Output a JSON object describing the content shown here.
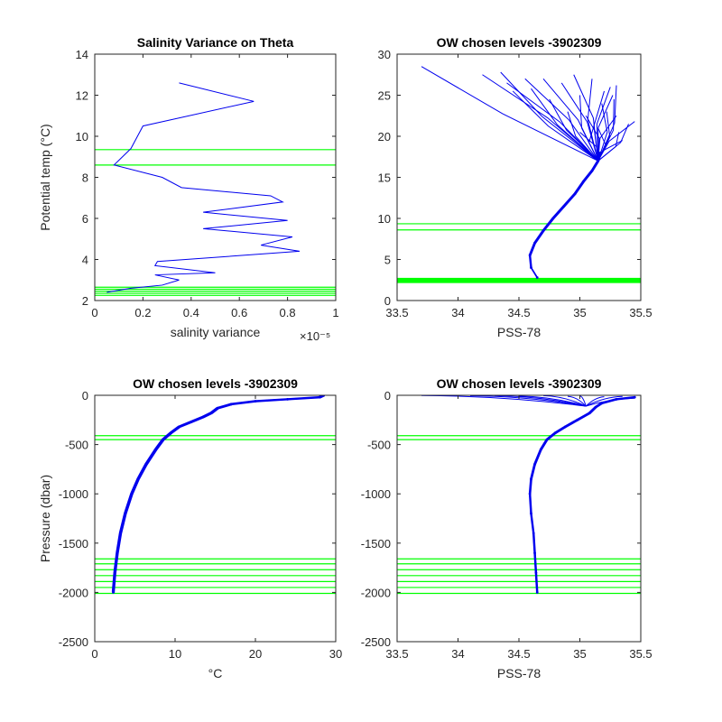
{
  "colors": {
    "profile": "#0000ee",
    "levels": "#00ff00",
    "axis": "#262626",
    "background": "#ffffff"
  },
  "chart_data": [
    {
      "id": "p1",
      "type": "line",
      "title": "Salinity Variance on Theta",
      "xlabel": "salinity variance",
      "ylabel": "Potential temp (°C)",
      "xlim": [
        0,
        1e-05
      ],
      "ylim": [
        2,
        14
      ],
      "xticks": [
        0,
        0.2,
        0.4,
        0.6,
        0.8,
        1
      ],
      "xticklabels": [
        "0",
        "0.2",
        "0.4",
        "0.6",
        "0.8",
        "1"
      ],
      "xscale_note": "×10⁻⁵",
      "yticks": [
        2,
        4,
        6,
        8,
        10,
        12,
        14
      ],
      "yticklabels": [
        "2",
        "4",
        "6",
        "8",
        "10",
        "12",
        "14"
      ],
      "series": [
        {
          "values": [
            [
              3.5e-06,
              12.6
            ],
            [
              6.6e-06,
              11.7
            ],
            [
              2e-06,
              10.5
            ],
            [
              1.5e-06,
              9.4
            ],
            [
              8e-07,
              8.6
            ],
            [
              2.8e-06,
              8.0
            ],
            [
              3.6e-06,
              7.5
            ],
            [
              7.3e-06,
              7.1
            ],
            [
              7.8e-06,
              6.8
            ],
            [
              4.5e-06,
              6.3
            ],
            [
              8e-06,
              5.9
            ],
            [
              4.5e-06,
              5.5
            ],
            [
              8.2e-06,
              5.1
            ],
            [
              6.9e-06,
              4.7
            ],
            [
              8.5e-06,
              4.4
            ],
            [
              2.6e-06,
              3.9
            ],
            [
              2.5e-06,
              3.7
            ],
            [
              5e-06,
              3.35
            ],
            [
              2.5e-06,
              3.25
            ],
            [
              3.5e-06,
              3.0
            ],
            [
              2.8e-06,
              2.75
            ],
            [
              1.5e-06,
              2.6
            ],
            [
              5e-07,
              2.4
            ]
          ]
        }
      ],
      "hlines": [
        9.35,
        8.6,
        2.65,
        2.55,
        2.45,
        2.35,
        2.25
      ]
    },
    {
      "id": "p2",
      "type": "line",
      "title": "OW chosen levels -3902309",
      "xlabel": "PSS-78",
      "ylabel": "",
      "xlim": [
        33.5,
        35.5
      ],
      "ylim": [
        0,
        30
      ],
      "xticks": [
        33.5,
        34,
        34.5,
        35,
        35.5
      ],
      "xticklabels": [
        "33.5",
        "34",
        "34.5",
        "35",
        "35.5"
      ],
      "yticks": [
        0,
        5,
        10,
        15,
        20,
        25,
        30
      ],
      "yticklabels": [
        "0",
        "5",
        "10",
        "15",
        "20",
        "25",
        "30"
      ],
      "series": [
        {
          "values": [
            [
              34.65,
              2.8
            ],
            [
              34.6,
              4.0
            ],
            [
              34.59,
              5.5
            ],
            [
              34.63,
              7.0
            ],
            [
              34.7,
              8.5
            ],
            [
              34.78,
              10.0
            ],
            [
              34.87,
              11.5
            ],
            [
              34.96,
              13.0
            ],
            [
              35.03,
              14.5
            ],
            [
              35.1,
              15.8
            ],
            [
              35.15,
              17.0
            ],
            [
              35.17,
              18.0
            ]
          ]
        }
      ],
      "fan_origin": [
        35.15,
        17.0
      ],
      "fan_ends": [
        [
          33.7,
          28.5
        ],
        [
          34.2,
          27.5
        ],
        [
          34.35,
          27.8
        ],
        [
          34.4,
          26.5
        ],
        [
          34.45,
          25.5
        ],
        [
          34.55,
          27.0
        ],
        [
          34.6,
          25.8
        ],
        [
          34.7,
          27.0
        ],
        [
          34.75,
          24.5
        ],
        [
          34.85,
          26.5
        ],
        [
          34.9,
          23.0
        ],
        [
          34.95,
          27.5
        ],
        [
          35.0,
          25.0
        ],
        [
          35.05,
          22.5
        ],
        [
          35.1,
          27.0
        ],
        [
          35.15,
          21.0
        ],
        [
          35.2,
          25.5
        ],
        [
          35.22,
          23.0
        ],
        [
          35.25,
          26.0
        ],
        [
          35.28,
          24.5
        ],
        [
          35.3,
          22.5
        ],
        [
          35.32,
          20.5
        ],
        [
          35.35,
          19.5
        ],
        [
          35.4,
          21.5
        ],
        [
          35.45,
          21.8
        ],
        [
          35.3,
          26.2
        ],
        [
          35.27,
          25.0
        ],
        [
          35.18,
          24.0
        ],
        [
          35.12,
          21.5
        ],
        [
          35.0,
          20.5
        ]
      ],
      "hlines": [
        9.35,
        8.6,
        2.7,
        2.6,
        2.5,
        2.4,
        2.3,
        2.2
      ]
    },
    {
      "id": "p3",
      "type": "line",
      "title": "OW chosen levels -3902309",
      "xlabel": "°C",
      "ylabel": "Pressure (dbar)",
      "xlim": [
        0,
        30
      ],
      "ylim": [
        -2500,
        0
      ],
      "xticks": [
        0,
        10,
        20,
        30
      ],
      "xticklabels": [
        "0",
        "10",
        "20",
        "30"
      ],
      "yticks": [
        -2500,
        -2000,
        -1500,
        -1000,
        -500,
        0
      ],
      "yticklabels": [
        "-2500",
        "-2000",
        "-1500",
        "-1000",
        "-500",
        "0"
      ],
      "series": [
        {
          "values": [
            [
              2.3,
              -2000
            ],
            [
              2.5,
              -1800
            ],
            [
              2.8,
              -1600
            ],
            [
              3.2,
              -1400
            ],
            [
              3.8,
              -1200
            ],
            [
              4.6,
              -1000
            ],
            [
              5.4,
              -850
            ],
            [
              6.4,
              -700
            ],
            [
              7.6,
              -550
            ],
            [
              8.5,
              -450
            ],
            [
              9.5,
              -380
            ],
            [
              10.5,
              -320
            ],
            [
              12.0,
              -270
            ],
            [
              13.5,
              -220
            ],
            [
              14.5,
              -180
            ],
            [
              15.3,
              -130
            ],
            [
              17.0,
              -90
            ],
            [
              20.0,
              -60
            ],
            [
              24.0,
              -40
            ],
            [
              28.0,
              -20
            ],
            [
              28.5,
              0
            ]
          ]
        }
      ],
      "hlines": [
        -410,
        -450,
        -1660,
        -1710,
        -1770,
        -1830,
        -1890,
        -1950,
        -2010
      ]
    },
    {
      "id": "p4",
      "type": "line",
      "title": "OW chosen levels -3902309",
      "xlabel": "PSS-78",
      "ylabel": "",
      "xlim": [
        33.5,
        35.5
      ],
      "ylim": [
        -2500,
        0
      ],
      "xticks": [
        33.5,
        34,
        34.5,
        35,
        35.5
      ],
      "xticklabels": [
        "33.5",
        "34",
        "34.5",
        "35",
        "35.5"
      ],
      "yticks": [
        -2500,
        -2000,
        -1500,
        -1000,
        -500,
        0
      ],
      "yticklabels": [
        "-2500",
        "-2000",
        "-1500",
        "-1000",
        "-500",
        "0"
      ],
      "series": [
        {
          "values": [
            [
              34.65,
              -2000
            ],
            [
              34.64,
              -1800
            ],
            [
              34.63,
              -1600
            ],
            [
              34.62,
              -1400
            ],
            [
              34.6,
              -1200
            ],
            [
              34.59,
              -1000
            ],
            [
              34.6,
              -850
            ],
            [
              34.63,
              -700
            ],
            [
              34.68,
              -550
            ],
            [
              34.73,
              -450
            ],
            [
              34.8,
              -380
            ],
            [
              34.88,
              -320
            ],
            [
              34.98,
              -250
            ],
            [
              35.08,
              -180
            ],
            [
              35.13,
              -120
            ],
            [
              35.18,
              -80
            ],
            [
              35.3,
              -40
            ],
            [
              35.45,
              -20
            ]
          ]
        }
      ],
      "surface_ends": [
        [
          33.7,
          -2
        ],
        [
          34.1,
          -5
        ],
        [
          34.3,
          -3
        ],
        [
          34.5,
          -8
        ],
        [
          34.7,
          -4
        ],
        [
          34.9,
          -10
        ],
        [
          35.0,
          -6
        ],
        [
          35.2,
          -15
        ],
        [
          35.35,
          -12
        ],
        [
          35.45,
          -30
        ]
      ],
      "hlines": [
        -410,
        -450,
        -1660,
        -1710,
        -1770,
        -1830,
        -1890,
        -1950,
        -2010
      ]
    }
  ]
}
